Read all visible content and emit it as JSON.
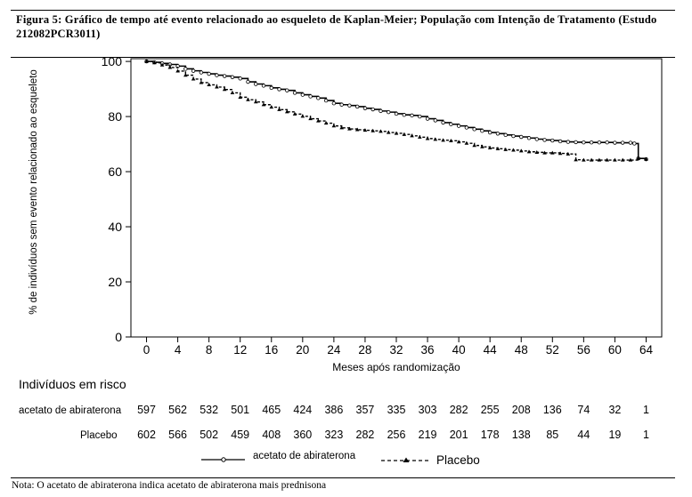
{
  "figure": {
    "caption": "Figura 5: Gráfico de tempo até evento relacionado ao esqueleto de Kaplan-Meier; População com Intenção de Tratamento (Estudo 212082PCR3011)",
    "note": "Nota: O acetato de abiraterona indica acetato de abiraterona mais prednisona"
  },
  "risk_table": {
    "title": "Indivíduos em risco",
    "rows": [
      {
        "label": "acetato de abiraterona",
        "values": [
          "597",
          "562",
          "532",
          "501",
          "465",
          "424",
          "386",
          "357",
          "335",
          "303",
          "282",
          "255",
          "208",
          "136",
          "74",
          "32",
          "1"
        ]
      },
      {
        "label": "Placebo",
        "values": [
          "602",
          "566",
          "502",
          "459",
          "408",
          "360",
          "323",
          "282",
          "256",
          "219",
          "201",
          "178",
          "138",
          "85",
          "44",
          "19",
          "1"
        ]
      }
    ]
  },
  "chart_data": {
    "type": "line",
    "xlabel": "Meses após randomização",
    "ylabel": "% de indivíduos sem evento relacionado ao esqueleto",
    "xlim": [
      -2,
      66
    ],
    "ylim": [
      0,
      101
    ],
    "xticks": [
      0,
      4,
      8,
      12,
      16,
      20,
      24,
      28,
      32,
      36,
      40,
      44,
      48,
      52,
      56,
      60,
      64
    ],
    "yticks": [
      0,
      20,
      40,
      60,
      80,
      100
    ],
    "legend_position": "bottom",
    "series": [
      {
        "name": "acetato de abiraterona",
        "style": "solid",
        "marker": "circle",
        "color": "#000000",
        "x": [
          0,
          1,
          2,
          3,
          4,
          5,
          6,
          7,
          8,
          9,
          10,
          11,
          12,
          13,
          14,
          15,
          16,
          17,
          18,
          19,
          20,
          21,
          22,
          23,
          24,
          25,
          26,
          27,
          28,
          29,
          30,
          31,
          32,
          33,
          34,
          35,
          36,
          37,
          38,
          39,
          40,
          41,
          42,
          43,
          44,
          45,
          46,
          47,
          48,
          49,
          50,
          51,
          52,
          53,
          54,
          55,
          56,
          57,
          58,
          59,
          60,
          61,
          62,
          62.5,
          63,
          64
        ],
        "y": [
          100,
          99.7,
          99.3,
          98.9,
          98.3,
          97.3,
          96.6,
          96.0,
          95.5,
          95.0,
          94.7,
          94.3,
          93.8,
          92.6,
          91.8,
          91.2,
          90.4,
          89.9,
          89.5,
          88.6,
          87.9,
          87.3,
          86.7,
          85.8,
          84.8,
          84.3,
          84.0,
          83.6,
          83.0,
          82.6,
          82.0,
          81.6,
          81.0,
          80.6,
          80.4,
          80.0,
          79.2,
          78.6,
          77.8,
          77.2,
          76.6,
          76.0,
          75.4,
          74.8,
          74.2,
          73.8,
          73.3,
          72.9,
          72.6,
          72.2,
          71.8,
          71.5,
          71.3,
          71.0,
          70.8,
          70.7,
          70.6,
          70.6,
          70.6,
          70.6,
          70.5,
          70.5,
          70.5,
          70.2,
          64.8,
          64.5
        ]
      },
      {
        "name": "Placebo",
        "style": "dashed",
        "marker": "triangle",
        "color": "#000000",
        "x": [
          0,
          1,
          2,
          3,
          4,
          5,
          6,
          7,
          8,
          9,
          10,
          11,
          12,
          13,
          14,
          15,
          16,
          17,
          18,
          19,
          20,
          21,
          22,
          23,
          24,
          25,
          26,
          27,
          28,
          29,
          30,
          31,
          32,
          33,
          34,
          35,
          36,
          37,
          38,
          39,
          40,
          41,
          42,
          43,
          44,
          45,
          46,
          47,
          48,
          49,
          50,
          51,
          52,
          53,
          54,
          55,
          56,
          57,
          58,
          59,
          60,
          61,
          62,
          63,
          64
        ],
        "y": [
          100,
          99.5,
          98.7,
          97.8,
          96.5,
          95.0,
          93.6,
          92.3,
          91.5,
          90.7,
          89.8,
          88.6,
          87.0,
          86.1,
          85.3,
          84.3,
          83.4,
          82.5,
          81.7,
          80.9,
          80.1,
          79.2,
          78.4,
          77.6,
          76.6,
          75.9,
          75.5,
          75.2,
          75.0,
          74.8,
          74.6,
          74.2,
          73.9,
          73.5,
          73.0,
          72.5,
          72.0,
          71.7,
          71.4,
          71.2,
          70.8,
          70.3,
          69.5,
          69.0,
          68.6,
          68.3,
          68.0,
          67.8,
          67.5,
          67.2,
          67.0,
          66.8,
          66.8,
          66.6,
          66.4,
          64.3,
          64.2,
          64.2,
          64.2,
          64.2,
          64.2,
          64.2,
          64.2,
          64.8,
          64.5
        ]
      }
    ]
  }
}
